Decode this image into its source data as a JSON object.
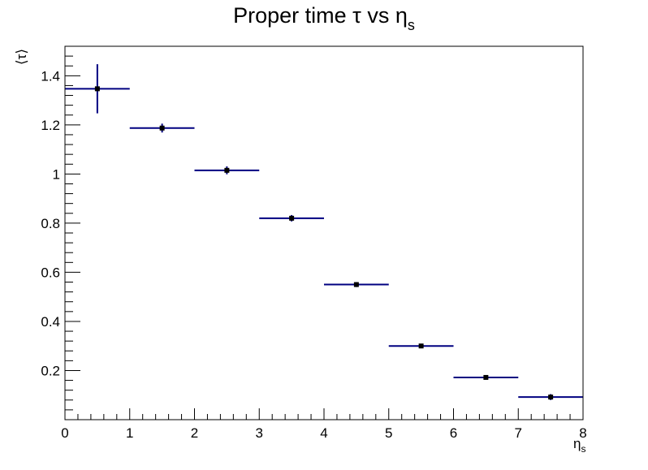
{
  "chart_data": {
    "type": "scatter",
    "title": "Proper time   τ vs   η",
    "title_sub": "s",
    "xlabel": "η",
    "xlabel_sub": "s",
    "ylabel": "⟨τ⟩",
    "xlim": [
      0,
      8
    ],
    "ylim": [
      0,
      1.52
    ],
    "grid": false,
    "x_ticks": [
      0,
      1,
      2,
      3,
      4,
      5,
      6,
      7,
      8
    ],
    "x_tick_labels": [
      "0",
      "1",
      "2",
      "3",
      "4",
      "5",
      "6",
      "7",
      "8"
    ],
    "y_ticks": [
      0.2,
      0.4,
      0.6,
      0.8,
      1.0,
      1.2,
      1.4
    ],
    "y_tick_labels": [
      "0.2",
      "0.4",
      "0.6",
      "0.8",
      "1",
      "1.2",
      "1.4"
    ],
    "series": [
      {
        "color": "#000080",
        "marker_color": "#000000",
        "x": [
          0.5,
          1.5,
          2.5,
          3.5,
          4.5,
          5.5,
          6.5,
          7.5
        ],
        "x_err": [
          0.5,
          0.5,
          0.5,
          0.5,
          0.5,
          0.5,
          0.5,
          0.5
        ],
        "y": [
          1.347,
          1.187,
          1.015,
          0.82,
          0.55,
          0.3,
          0.172,
          0.092
        ],
        "y_err": [
          0.1,
          0.018,
          0.016,
          0.013,
          0.01,
          0.008,
          0.007,
          0.012
        ]
      }
    ]
  }
}
